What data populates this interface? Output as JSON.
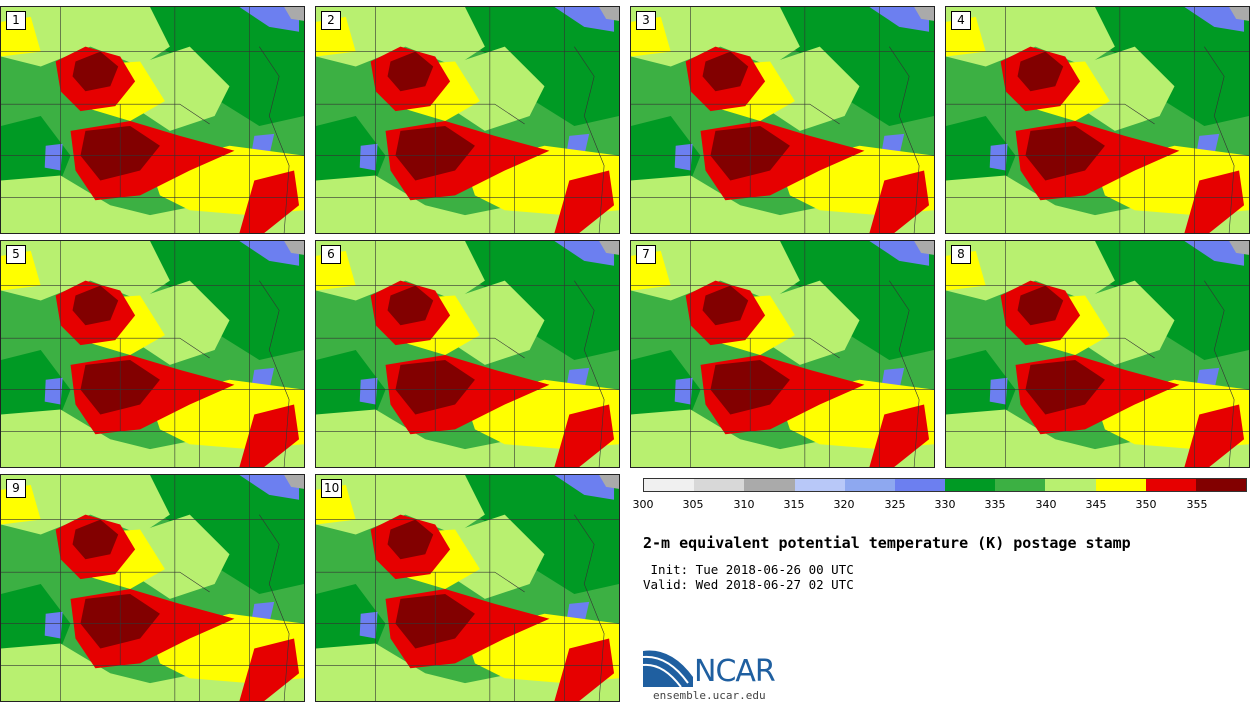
{
  "title": "2-m equivalent potential temperature (K) postage stamp",
  "init_text": " Init: Tue 2018-06-26 00 UTC",
  "valid_text": "Valid: Wed 2018-06-27 02 UTC",
  "members": [
    "1",
    "2",
    "3",
    "4",
    "5",
    "6",
    "7",
    "8",
    "9",
    "10"
  ],
  "colorbar": {
    "ticks": [
      "300",
      "305",
      "310",
      "315",
      "320",
      "325",
      "330",
      "335",
      "340",
      "345",
      "350",
      "355"
    ],
    "colors": [
      "#f0f0f0",
      "#d8d8d8",
      "#aaaaaa",
      "#b8c8f8",
      "#8ea8f0",
      "#6c7ff0",
      "#009a24",
      "#3cb043",
      "#b8f070",
      "#ffff00",
      "#e60000",
      "#820000"
    ]
  },
  "logo": {
    "name": "NCAR",
    "url": "ensemble.ucar.edu",
    "icon": "ncar-logo-icon"
  }
}
